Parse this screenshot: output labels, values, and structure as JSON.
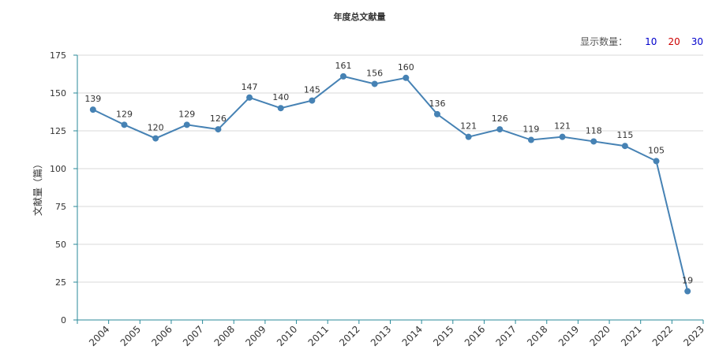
{
  "chart_data": {
    "type": "line",
    "title": "年度总文献量",
    "ylabel": "文献量（篇）",
    "xlabel": "",
    "ylim": [
      0,
      175
    ],
    "yticks": [
      0,
      25,
      50,
      75,
      100,
      125,
      150,
      175
    ],
    "grid": true,
    "categories": [
      "2004",
      "2005",
      "2006",
      "2007",
      "2008",
      "2009",
      "2010",
      "2011",
      "2012",
      "2013",
      "2014",
      "2015",
      "2016",
      "2017",
      "2018",
      "2019",
      "2020",
      "2021",
      "2022",
      "2023"
    ],
    "series": [
      {
        "values": [
          139,
          129,
          120,
          129,
          126,
          147,
          140,
          145,
          161,
          156,
          160,
          136,
          121,
          126,
          119,
          121,
          118,
          115,
          105,
          19
        ]
      }
    ],
    "line_color": "#4682b4",
    "axis_color": "#2a8a9a"
  },
  "display_count": {
    "label": "显示数量：",
    "options": [
      {
        "text": "10",
        "color": "#0000cc"
      },
      {
        "text": "20",
        "color": "#cc0000"
      },
      {
        "text": "30",
        "color": "#0000cc"
      }
    ]
  }
}
